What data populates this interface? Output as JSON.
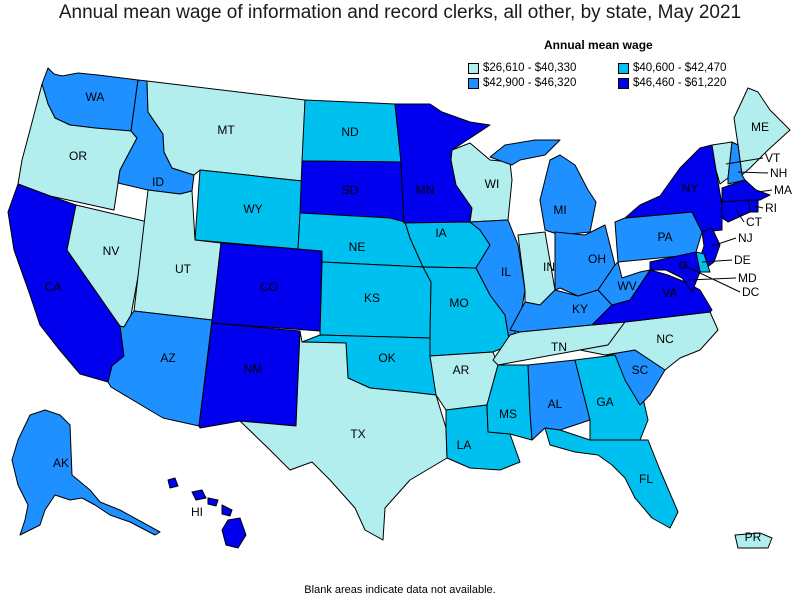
{
  "title": "Annual mean wage of information and record clerks, all other, by state, May 2021",
  "legend": {
    "title": "Annual mean wage",
    "items": [
      {
        "label": "$26,610 - $40,330",
        "color": "#b2eeee"
      },
      {
        "label": "$40,600 - $42,470",
        "color": "#00c0f0"
      },
      {
        "label": "$42,900 - $46,320",
        "color": "#1e90ff"
      },
      {
        "label": "$46,460 - $61,220",
        "color": "#0000ee"
      }
    ]
  },
  "footnote": "Blank areas indicate data not available.",
  "chart_data": {
    "type": "choropleth",
    "title": "Annual mean wage of information and record clerks, all other, by state, May 2021",
    "legend_placement": "top-right",
    "bins": [
      "$26,610 - $40,330",
      "$40,600 - $42,470",
      "$42,900 - $46,320",
      "$46,460 - $61,220"
    ],
    "states": {
      "WA": 2,
      "OR": 0,
      "CA": 3,
      "NV": 0,
      "ID": 2,
      "MT": 0,
      "WY": 1,
      "UT": 0,
      "AZ": 2,
      "CO": 3,
      "NM": 3,
      "ND": 1,
      "SD": 3,
      "NE": 1,
      "KS": 1,
      "OK": 1,
      "TX": 0,
      "MN": 3,
      "IA": 1,
      "MO": 1,
      "AR": 0,
      "LA": 1,
      "WI": 0,
      "IL": 2,
      "MI": 2,
      "IN": 0,
      "OH": 2,
      "KY": 2,
      "TN": 0,
      "MS": 1,
      "AL": 2,
      "GA": 1,
      "FL": 1,
      "SC": 2,
      "NC": 0,
      "VA": 3,
      "WV": 2,
      "PA": 2,
      "NY": 3,
      "ME": 0,
      "VT": 0,
      "NH": 2,
      "MA": 3,
      "RI": 3,
      "CT": 3,
      "NJ": 3,
      "DE": 1,
      "MD": 3,
      "DC": 3,
      "AK": 2,
      "HI": 3,
      "PR": 0
    }
  }
}
